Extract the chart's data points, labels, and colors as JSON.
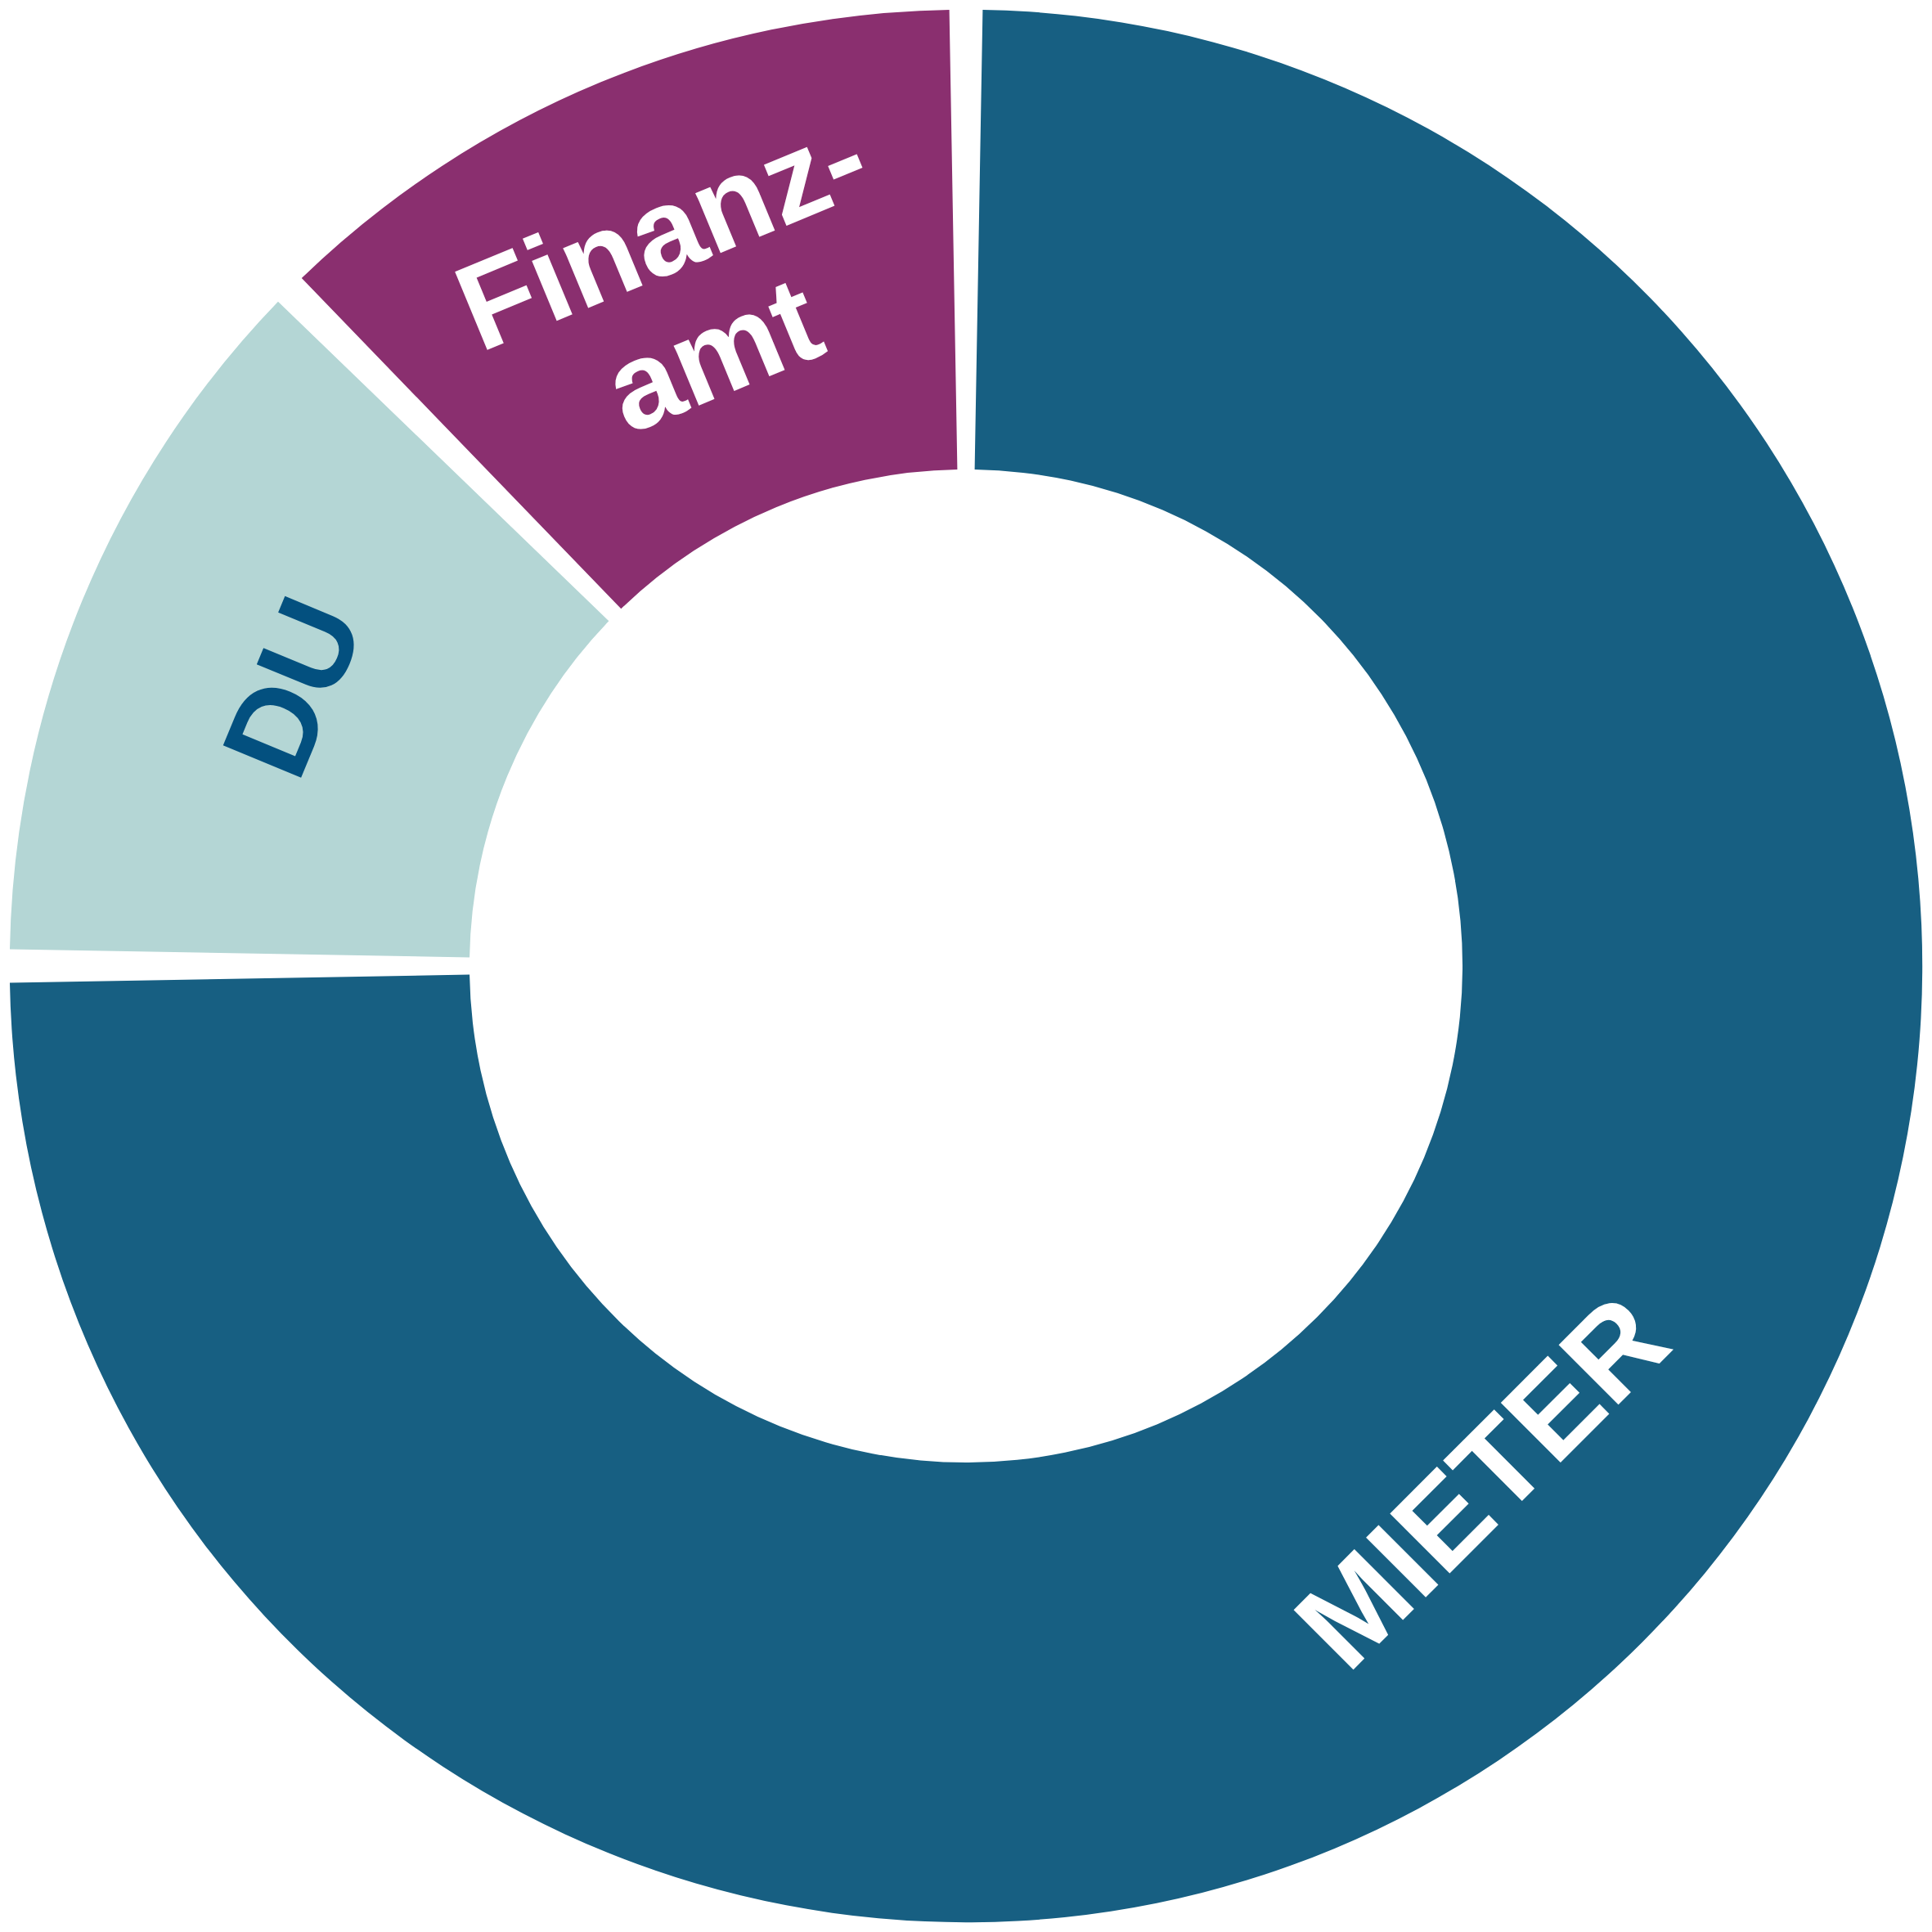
{
  "chart_data": {
    "type": "donut",
    "categories": [
      "MIETER",
      "DU",
      "Finanz-\namt"
    ],
    "values": [
      75,
      12.5,
      12.5
    ],
    "colors": [
      "#175f82",
      "#b4d6d5",
      "#8a2f6f"
    ]
  }
}
